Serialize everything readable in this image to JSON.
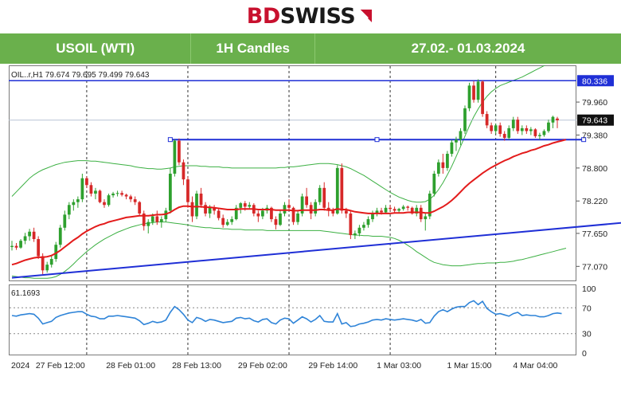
{
  "logo": {
    "part1": "BD",
    "part2": "SWISS",
    "mark_icon": "bdswiss-arrow-icon"
  },
  "header": {
    "instrument": "USOIL (WTI)",
    "timeframe": "1H Candles",
    "date_range": "27.02.- 01.03.2024"
  },
  "colors": {
    "header_green": "#6ab04c",
    "bull": "#2ea02e",
    "bear": "#d62828",
    "ma": "#e31b1b",
    "band": "#3cb043",
    "level": "#1f2fd6",
    "rsi": "#2f84d8",
    "brand_red": "#c8102e"
  },
  "chart_data": {
    "type": "candlestick",
    "info_label": "OIL..r,H1  79.674 79.695 79.499 79.643",
    "y_ticks": [
      "79.960",
      "79.380",
      "78.800",
      "78.220",
      "77.650",
      "77.070"
    ],
    "ylim": [
      76.85,
      80.55
    ],
    "resistance_label": "80.336",
    "resistance_level": 80.336,
    "support_level": 79.3,
    "last_price_label": "79.643",
    "last_price": 79.643,
    "trendline": {
      "from": [
        0,
        76.87
      ],
      "to": [
        158,
        77.97
      ]
    },
    "candles": [
      [
        77.41,
        77.52,
        77.35,
        77.43
      ],
      [
        77.43,
        77.48,
        77.36,
        77.4
      ],
      [
        77.4,
        77.55,
        77.38,
        77.52
      ],
      [
        77.52,
        77.66,
        77.46,
        77.6
      ],
      [
        77.6,
        77.73,
        77.52,
        77.68
      ],
      [
        77.68,
        77.75,
        77.5,
        77.55
      ],
      [
        77.55,
        77.6,
        77.2,
        77.25
      ],
      [
        77.25,
        77.3,
        76.93,
        77.0
      ],
      [
        77.0,
        77.15,
        76.96,
        77.1
      ],
      [
        77.1,
        77.25,
        77.05,
        77.2
      ],
      [
        77.2,
        77.5,
        77.15,
        77.45
      ],
      [
        77.45,
        77.8,
        77.4,
        77.75
      ],
      [
        77.75,
        78.05,
        77.7,
        77.98
      ],
      [
        77.98,
        78.2,
        77.9,
        78.15
      ],
      [
        78.15,
        78.25,
        78.05,
        78.2
      ],
      [
        78.2,
        78.3,
        78.1,
        78.25
      ],
      [
        78.25,
        78.7,
        78.2,
        78.62
      ],
      [
        78.62,
        78.65,
        78.45,
        78.5
      ],
      [
        78.5,
        78.55,
        78.3,
        78.35
      ],
      [
        78.35,
        78.45,
        78.25,
        78.4
      ],
      [
        78.4,
        78.42,
        78.18,
        78.2
      ],
      [
        78.2,
        78.25,
        78.1,
        78.15
      ],
      [
        78.15,
        78.35,
        78.12,
        78.32
      ],
      [
        78.32,
        78.38,
        78.28,
        78.35
      ],
      [
        78.35,
        78.4,
        78.3,
        78.36
      ],
      [
        78.36,
        78.4,
        78.3,
        78.33
      ],
      [
        78.33,
        78.35,
        78.25,
        78.3
      ],
      [
        78.3,
        78.33,
        78.2,
        78.25
      ],
      [
        78.25,
        78.3,
        78.15,
        78.2
      ],
      [
        78.2,
        78.22,
        77.95,
        78.0
      ],
      [
        78.0,
        78.05,
        77.7,
        77.78
      ],
      [
        77.78,
        77.9,
        77.65,
        77.85
      ],
      [
        77.85,
        78.0,
        77.8,
        77.95
      ],
      [
        77.95,
        78.05,
        77.8,
        77.85
      ],
      [
        77.85,
        77.95,
        77.75,
        77.9
      ],
      [
        77.9,
        78.1,
        77.85,
        78.05
      ],
      [
        78.05,
        78.8,
        78.0,
        78.7
      ],
      [
        78.7,
        79.3,
        78.65,
        79.28
      ],
      [
        79.28,
        79.32,
        78.85,
        78.9
      ],
      [
        78.9,
        78.95,
        78.5,
        78.6
      ],
      [
        78.6,
        78.65,
        78.1,
        78.2
      ],
      [
        78.2,
        78.3,
        77.85,
        77.95
      ],
      [
        77.95,
        78.4,
        77.9,
        78.35
      ],
      [
        78.35,
        78.45,
        78.1,
        78.15
      ],
      [
        78.15,
        78.2,
        77.95,
        78.0
      ],
      [
        78.0,
        78.15,
        77.92,
        78.1
      ],
      [
        78.1,
        78.15,
        77.98,
        78.05
      ],
      [
        78.05,
        78.08,
        77.88,
        77.92
      ],
      [
        77.92,
        77.98,
        77.75,
        77.8
      ],
      [
        77.8,
        77.9,
        77.78,
        77.85
      ],
      [
        77.85,
        77.95,
        77.8,
        77.9
      ],
      [
        77.9,
        78.15,
        77.88,
        78.1
      ],
      [
        78.1,
        78.2,
        78.0,
        78.18
      ],
      [
        78.18,
        78.22,
        78.05,
        78.12
      ],
      [
        78.12,
        78.2,
        78.08,
        78.15
      ],
      [
        78.15,
        78.18,
        77.95,
        78.0
      ],
      [
        78.0,
        78.05,
        77.85,
        77.95
      ],
      [
        77.95,
        78.1,
        77.9,
        78.05
      ],
      [
        78.05,
        78.15,
        78.0,
        78.1
      ],
      [
        78.1,
        78.12,
        77.85,
        77.9
      ],
      [
        77.9,
        77.95,
        77.72,
        77.8
      ],
      [
        77.8,
        78.05,
        77.78,
        78.0
      ],
      [
        78.0,
        78.2,
        77.95,
        78.15
      ],
      [
        78.15,
        78.25,
        78.05,
        78.1
      ],
      [
        78.1,
        78.12,
        77.8,
        77.85
      ],
      [
        77.85,
        78.05,
        77.8,
        78.0
      ],
      [
        78.0,
        78.35,
        77.95,
        78.3
      ],
      [
        78.3,
        78.45,
        78.1,
        78.15
      ],
      [
        78.15,
        78.2,
        77.9,
        78.0
      ],
      [
        78.0,
        78.25,
        77.95,
        78.2
      ],
      [
        78.2,
        78.5,
        78.15,
        78.45
      ],
      [
        78.45,
        78.55,
        78.05,
        78.1
      ],
      [
        78.1,
        78.2,
        77.95,
        78.05
      ],
      [
        78.05,
        78.1,
        77.95,
        78.0
      ],
      [
        78.0,
        78.85,
        77.98,
        78.8
      ],
      [
        78.8,
        78.88,
        78.0,
        78.05
      ],
      [
        78.05,
        78.1,
        77.92,
        78.0
      ],
      [
        78.0,
        78.05,
        77.55,
        77.62
      ],
      [
        77.62,
        77.7,
        77.55,
        77.65
      ],
      [
        77.65,
        77.8,
        77.6,
        77.75
      ],
      [
        77.75,
        77.85,
        77.7,
        77.8
      ],
      [
        77.8,
        77.95,
        77.75,
        77.9
      ],
      [
        77.9,
        78.05,
        77.85,
        78.0
      ],
      [
        78.0,
        78.1,
        77.95,
        78.05
      ],
      [
        78.05,
        78.1,
        77.98,
        78.02
      ],
      [
        78.02,
        78.15,
        78.0,
        78.1
      ],
      [
        78.1,
        78.15,
        78.05,
        78.08
      ],
      [
        78.08,
        78.12,
        78.0,
        78.05
      ],
      [
        78.05,
        78.1,
        78.0,
        78.08
      ],
      [
        78.08,
        78.15,
        78.05,
        78.12
      ],
      [
        78.12,
        78.14,
        78.05,
        78.1
      ],
      [
        78.1,
        78.12,
        77.98,
        78.0
      ],
      [
        78.0,
        78.15,
        77.95,
        78.1
      ],
      [
        78.1,
        78.15,
        77.85,
        77.9
      ],
      [
        77.9,
        78.0,
        77.7,
        77.95
      ],
      [
        77.95,
        78.4,
        77.9,
        78.35
      ],
      [
        78.35,
        78.75,
        78.3,
        78.7
      ],
      [
        78.7,
        78.95,
        78.65,
        78.9
      ],
      [
        78.9,
        79.05,
        78.7,
        78.8
      ],
      [
        78.8,
        79.1,
        78.75,
        79.05
      ],
      [
        79.05,
        79.3,
        79.0,
        79.25
      ],
      [
        79.25,
        79.35,
        79.1,
        79.3
      ],
      [
        79.3,
        79.5,
        79.2,
        79.45
      ],
      [
        79.45,
        79.9,
        79.4,
        79.85
      ],
      [
        79.85,
        80.3,
        79.8,
        80.25
      ],
      [
        80.25,
        80.33,
        79.95,
        80.0
      ],
      [
        80.0,
        80.36,
        79.95,
        80.32
      ],
      [
        80.32,
        80.34,
        79.7,
        79.75
      ],
      [
        79.75,
        79.8,
        79.5,
        79.55
      ],
      [
        79.55,
        79.6,
        79.4,
        79.45
      ],
      [
        79.45,
        79.58,
        79.4,
        79.55
      ],
      [
        79.55,
        79.6,
        79.35,
        79.4
      ],
      [
        79.4,
        79.45,
        79.28,
        79.33
      ],
      [
        79.33,
        79.55,
        79.3,
        79.5
      ],
      [
        79.5,
        79.7,
        79.45,
        79.65
      ],
      [
        79.65,
        79.7,
        79.4,
        79.45
      ],
      [
        79.45,
        79.55,
        79.38,
        79.5
      ],
      [
        79.5,
        79.55,
        79.4,
        79.45
      ],
      [
        79.45,
        79.52,
        79.38,
        79.48
      ],
      [
        79.48,
        79.5,
        79.33,
        79.36
      ],
      [
        79.36,
        79.42,
        79.3,
        79.38
      ],
      [
        79.38,
        79.48,
        79.35,
        79.45
      ],
      [
        79.45,
        79.65,
        79.42,
        79.6
      ],
      [
        79.6,
        79.72,
        79.5,
        79.7
      ],
      [
        79.67,
        79.7,
        79.5,
        79.64
      ]
    ],
    "ma_series": [
      77.1,
      77.12,
      77.15,
      77.18,
      77.2,
      77.22,
      77.23,
      77.23,
      77.24,
      77.26,
      77.3,
      77.35,
      77.41,
      77.47,
      77.53,
      77.58,
      77.64,
      77.69,
      77.73,
      77.77,
      77.8,
      77.82,
      77.85,
      77.87,
      77.89,
      77.91,
      77.93,
      77.94,
      77.95,
      77.96,
      77.96,
      77.96,
      77.97,
      77.98,
      77.98,
      77.99,
      78.02,
      78.07,
      78.11,
      78.13,
      78.13,
      78.12,
      78.12,
      78.12,
      78.11,
      78.11,
      78.1,
      78.09,
      78.08,
      78.07,
      78.07,
      78.07,
      78.08,
      78.08,
      78.08,
      78.08,
      78.07,
      78.07,
      78.07,
      78.07,
      78.06,
      78.06,
      78.06,
      78.06,
      78.05,
      78.05,
      78.06,
      78.06,
      78.06,
      78.06,
      78.07,
      78.07,
      78.06,
      78.06,
      78.08,
      78.07,
      78.07,
      78.05,
      78.03,
      78.02,
      78.01,
      78.0,
      78.0,
      78.0,
      78.0,
      78.0,
      78.0,
      78.01,
      78.01,
      78.01,
      78.02,
      78.02,
      78.02,
      78.02,
      78.01,
      78.01,
      78.04,
      78.08,
      78.12,
      78.17,
      78.23,
      78.3,
      78.38,
      78.46,
      78.53,
      78.59,
      78.65,
      78.71,
      78.76,
      78.81,
      78.85,
      78.89,
      78.93,
      78.96,
      79.0,
      79.03,
      79.06,
      79.08,
      79.11,
      79.13,
      79.16,
      79.19,
      79.21,
      79.24,
      79.26,
      79.28,
      79.3
    ],
    "upper_band": [
      78.3,
      78.38,
      78.46,
      78.54,
      78.62,
      78.68,
      78.73,
      78.77,
      78.8,
      78.83,
      78.86,
      78.88,
      78.9,
      78.91,
      78.92,
      78.93,
      78.93,
      78.93,
      78.92,
      78.92,
      78.91,
      78.9,
      78.89,
      78.88,
      78.87,
      78.86,
      78.85,
      78.84,
      78.82,
      78.81,
      78.8,
      78.79,
      78.79,
      78.78,
      78.78,
      78.79,
      78.8,
      78.82,
      78.83,
      78.84,
      78.84,
      78.84,
      78.84,
      78.83,
      78.83,
      78.82,
      78.82,
      78.82,
      78.81,
      78.81,
      78.8,
      78.8,
      78.8,
      78.8,
      78.8,
      78.8,
      78.8,
      78.8,
      78.8,
      78.8,
      78.8,
      78.81,
      78.81,
      78.82,
      78.82,
      78.83,
      78.84,
      78.85,
      78.86,
      78.87,
      78.88,
      78.88,
      78.88,
      78.87,
      78.86,
      78.84,
      78.82,
      78.79,
      78.75,
      78.71,
      78.67,
      78.62,
      78.57,
      78.52,
      78.47,
      78.42,
      78.37,
      78.33,
      78.29,
      78.26,
      78.23,
      78.21,
      78.2,
      78.2,
      78.21,
      78.25,
      78.32,
      78.42,
      78.54,
      78.68,
      78.83,
      79.0,
      79.18,
      79.36,
      79.54,
      79.7,
      79.84,
      79.96,
      80.06,
      80.14,
      80.2,
      80.25,
      80.28,
      80.31,
      80.34,
      80.37,
      80.4,
      80.44,
      80.48,
      80.52,
      80.56,
      80.6,
      80.64,
      80.68,
      80.71,
      80.74,
      80.77
    ],
    "lower_band": [
      76.9,
      76.89,
      76.88,
      76.87,
      76.87,
      76.86,
      76.86,
      76.86,
      76.86,
      76.87,
      76.89,
      76.93,
      76.98,
      77.04,
      77.11,
      77.19,
      77.26,
      77.33,
      77.39,
      77.45,
      77.5,
      77.55,
      77.59,
      77.63,
      77.67,
      77.7,
      77.73,
      77.76,
      77.78,
      77.8,
      77.82,
      77.83,
      77.84,
      77.85,
      77.85,
      77.85,
      77.84,
      77.83,
      77.82,
      77.81,
      77.8,
      77.78,
      77.77,
      77.76,
      77.75,
      77.75,
      77.74,
      77.74,
      77.73,
      77.73,
      77.72,
      77.72,
      77.72,
      77.71,
      77.71,
      77.71,
      77.71,
      77.71,
      77.7,
      77.7,
      77.7,
      77.7,
      77.7,
      77.7,
      77.7,
      77.7,
      77.7,
      77.7,
      77.7,
      77.7,
      77.7,
      77.69,
      77.68,
      77.67,
      77.66,
      77.65,
      77.64,
      77.63,
      77.62,
      77.62,
      77.61,
      77.61,
      77.6,
      77.6,
      77.6,
      77.59,
      77.58,
      77.56,
      77.53,
      77.49,
      77.44,
      77.39,
      77.33,
      77.28,
      77.23,
      77.18,
      77.14,
      77.12,
      77.1,
      77.09,
      77.08,
      77.08,
      77.08,
      77.09,
      77.1,
      77.11,
      77.12,
      77.12,
      77.13,
      77.13,
      77.13,
      77.14,
      77.14,
      77.15,
      77.16,
      77.18,
      77.19,
      77.21,
      77.23,
      77.25,
      77.27,
      77.29,
      77.31,
      77.33,
      77.35,
      77.37,
      77.39
    ],
    "x_labels": [
      "2024",
      "27 Feb 12:00",
      "28 Feb 01:00",
      "28 Feb 13:00",
      "29 Feb 02:00",
      "29 Feb 14:00",
      "1 Mar 03:00",
      "1 Mar 15:00",
      "4 Mar 04:00"
    ],
    "x_label_index": [
      0,
      11,
      27,
      42,
      57,
      73,
      88,
      104,
      119
    ],
    "x_label_anchor": [
      "start",
      "middle",
      "middle",
      "middle",
      "middle",
      "middle",
      "middle",
      "middle",
      "middle"
    ],
    "session_dividers": [
      17,
      40,
      63,
      86,
      110
    ],
    "rsi": {
      "label": "61.1693",
      "ylim": [
        0,
        100
      ],
      "ticks": [
        "100",
        "70",
        "30",
        "0"
      ],
      "tick_values": [
        100,
        70,
        30,
        0
      ],
      "levels": [
        70,
        30
      ],
      "values": [
        58,
        57,
        59,
        60,
        61,
        60,
        54,
        45,
        47,
        49,
        55,
        58,
        60,
        62,
        63,
        64,
        64,
        60,
        57,
        56,
        53,
        53,
        57,
        57,
        58,
        57,
        56,
        55,
        54,
        50,
        44,
        46,
        49,
        47,
        48,
        51,
        63,
        72,
        67,
        60,
        51,
        47,
        55,
        53,
        49,
        52,
        51,
        49,
        47,
        48,
        49,
        54,
        55,
        53,
        54,
        50,
        48,
        52,
        53,
        47,
        45,
        51,
        54,
        53,
        46,
        51,
        56,
        53,
        48,
        52,
        58,
        49,
        48,
        48,
        61,
        45,
        47,
        41,
        42,
        45,
        46,
        48,
        51,
        52,
        51,
        53,
        52,
        51,
        52,
        53,
        52,
        51,
        49,
        52,
        46,
        47,
        57,
        64,
        67,
        64,
        68,
        71,
        72,
        72,
        78,
        81,
        75,
        80,
        69,
        64,
        60,
        61,
        59,
        57,
        61,
        63,
        58,
        59,
        58,
        58,
        56,
        56,
        58,
        61,
        62,
        61
      ]
    }
  }
}
